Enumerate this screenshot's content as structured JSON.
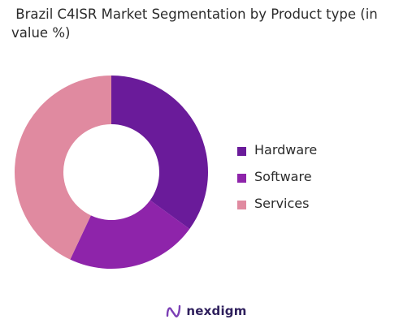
{
  "chart_data": {
    "type": "pie",
    "variant": "donut",
    "title": " Brazil C4ISR Market Segmentation by Product type (in value %)",
    "categories": [
      "Hardware",
      "Software",
      "Services"
    ],
    "values": [
      35,
      22,
      43
    ],
    "colors": [
      "#6a1b9a",
      "#8e24aa",
      "#e08aa0"
    ],
    "legend_position": "right"
  },
  "brand": {
    "name": "nexdigm",
    "icon": "nexdigm-logo-icon"
  }
}
